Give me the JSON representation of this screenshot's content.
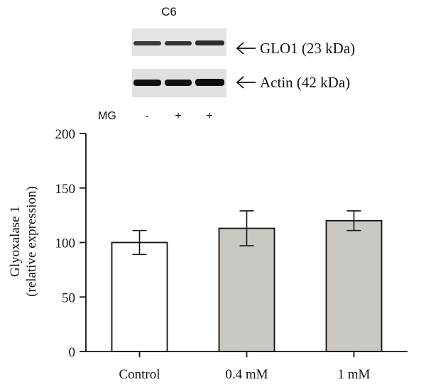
{
  "figure": {
    "cell_line": "C6",
    "blots": [
      {
        "label": "GLO1 (23 kDa)"
      },
      {
        "label": "Actin (42 kDa)"
      }
    ],
    "treatment": {
      "label": "MG",
      "signs": [
        "-",
        "+",
        "+"
      ]
    }
  },
  "chart_data": {
    "type": "bar",
    "title": "",
    "xlabel": "",
    "ylabel_line1": "Glyoxalase 1",
    "ylabel_line2": "(relative expression)",
    "categories": [
      "Control",
      "0.4 mM",
      "1 mM"
    ],
    "values": [
      100,
      113,
      120
    ],
    "error": [
      11,
      16,
      9
    ],
    "bar_colors": [
      "#ffffff",
      "#cbc8c4",
      "#cbc8c4"
    ],
    "bar_edge_color": "#111111",
    "ylim": [
      0,
      200
    ],
    "yticks": [
      "0",
      "50",
      "100",
      "150",
      "200"
    ],
    "grid": false
  }
}
